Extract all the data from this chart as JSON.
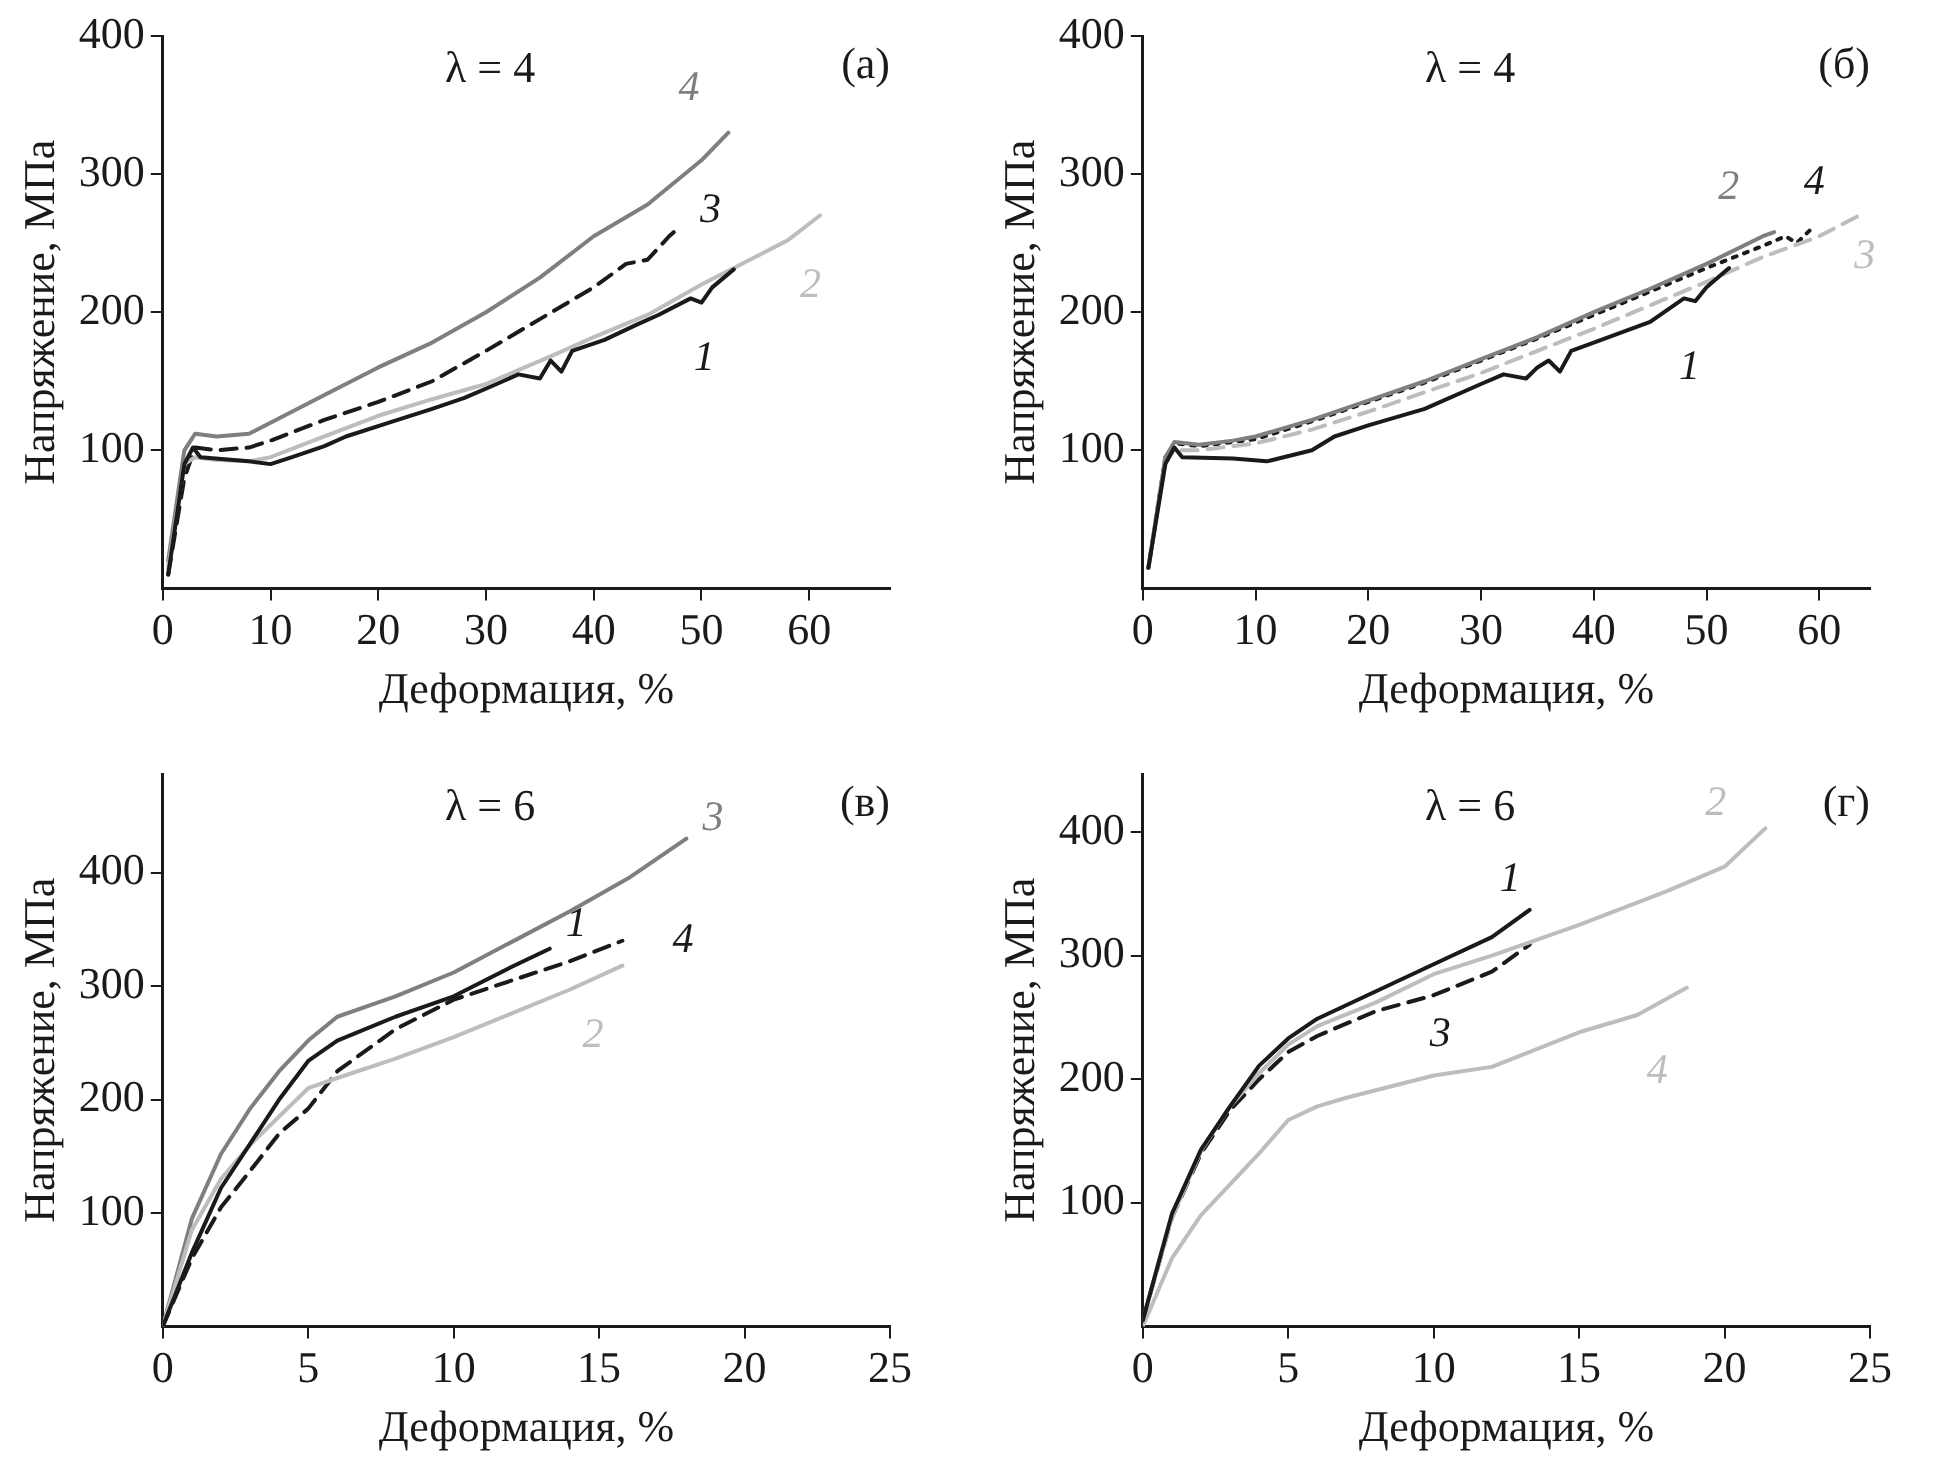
{
  "chart_data": [
    {
      "type": "line",
      "title": "λ = 4",
      "annotations": [
        "(а)"
      ],
      "xlabel": "Деформация, %",
      "ylabel": "Напряжение, МПа",
      "xlim": [
        0,
        67.5
      ],
      "ylim": [
        0,
        400
      ],
      "xticks": [
        0,
        10,
        20,
        30,
        40,
        50,
        60
      ],
      "yticks": [
        100,
        200,
        300,
        400
      ],
      "grid": false,
      "series": [
        {
          "name": "1",
          "color": "#1a1a1a",
          "line_style": "solid",
          "x": [
            0.5,
            2,
            2.8,
            3.5,
            8,
            10,
            12,
            15,
            17,
            21,
            25,
            28,
            31,
            33,
            35,
            36,
            37,
            38,
            41,
            44,
            46,
            49,
            50,
            51,
            53
          ],
          "values": [
            10,
            90,
            102,
            95,
            92,
            90,
            95,
            103,
            110,
            120,
            130,
            138,
            148,
            155,
            152,
            165,
            157,
            172,
            180,
            191,
            198,
            210,
            207,
            218,
            231
          ]
        },
        {
          "name": "2",
          "color": "#bdbdbd",
          "line_style": "solid",
          "x": [
            0.5,
            2,
            3,
            5,
            8,
            10,
            15,
            20,
            25,
            30,
            33,
            36,
            40,
            45,
            50,
            55,
            58,
            61
          ],
          "values": [
            15,
            90,
            95,
            93,
            92,
            95,
            110,
            125,
            137,
            148,
            158,
            168,
            182,
            198,
            220,
            240,
            252,
            270
          ]
        },
        {
          "name": "3",
          "color": "#1a1a1a",
          "line_style": "dashed",
          "x": [
            0.5,
            2,
            3,
            5,
            8,
            10,
            15,
            20,
            25,
            30,
            35,
            40,
            43,
            45,
            47,
            48
          ],
          "values": [
            10,
            80,
            102,
            100,
            102,
            107,
            122,
            135,
            150,
            172,
            195,
            218,
            235,
            238,
            255,
            262
          ]
        },
        {
          "name": "4",
          "color": "#7f7f7f",
          "line_style": "solid",
          "x": [
            0.5,
            2,
            3,
            5,
            8,
            10,
            15,
            20,
            25,
            30,
            35,
            40,
            45,
            50,
            52.5
          ],
          "values": [
            20,
            100,
            112,
            110,
            112,
            120,
            140,
            160,
            178,
            200,
            225,
            255,
            278,
            310,
            330
          ]
        }
      ]
    },
    {
      "type": "line",
      "title": "λ = 4",
      "annotations": [
        "(б)"
      ],
      "xlabel": "Деформация, %",
      "ylabel": "Напряжение, МПа",
      "xlim": [
        0,
        64.5
      ],
      "ylim": [
        0,
        400
      ],
      "xticks": [
        0,
        10,
        20,
        30,
        40,
        50,
        60
      ],
      "yticks": [
        100,
        200,
        300,
        400
      ],
      "grid": false,
      "series": [
        {
          "name": "1",
          "color": "#1a1a1a",
          "line_style": "solid",
          "x": [
            0.5,
            2,
            2.8,
            3.5,
            8,
            11,
            15,
            17,
            20,
            25,
            30,
            32,
            34,
            35,
            36,
            37,
            38,
            40,
            45,
            48,
            49,
            50,
            52
          ],
          "values": [
            15,
            90,
            102,
            95,
            94,
            92,
            100,
            110,
            118,
            130,
            148,
            155,
            152,
            160,
            165,
            157,
            172,
            178,
            193,
            210,
            208,
            218,
            232
          ]
        },
        {
          "name": "2",
          "color": "#7f7f7f",
          "line_style": "solid",
          "x": [
            0.5,
            2,
            2.8,
            5,
            8,
            10,
            15,
            20,
            25,
            30,
            35,
            40,
            45,
            50,
            55,
            56
          ],
          "values": [
            15,
            95,
            106,
            104,
            107,
            110,
            122,
            136,
            150,
            166,
            182,
            200,
            217,
            235,
            255,
            258
          ]
        },
        {
          "name": "3",
          "color": "#bdbdbd",
          "line_style": "dashed",
          "x": [
            0.5,
            2,
            3,
            5,
            10,
            15,
            20,
            25,
            30,
            35,
            40,
            45,
            50,
            55,
            60,
            64
          ],
          "values": [
            15,
            95,
            100,
            100,
            105,
            115,
            128,
            142,
            156,
            172,
            188,
            205,
            222,
            240,
            255,
            272
          ]
        },
        {
          "name": "4",
          "color": "#1a1a1a",
          "line_style": "dotted",
          "x": [
            0.5,
            2,
            3,
            5,
            10,
            15,
            20,
            25,
            30,
            35,
            40,
            45,
            50,
            55,
            57,
            58,
            59.5
          ],
          "values": [
            15,
            95,
            105,
            103,
            108,
            121,
            135,
            149,
            165,
            181,
            198,
            215,
            232,
            248,
            255,
            250,
            262
          ]
        }
      ]
    },
    {
      "type": "line",
      "title": "λ = 6",
      "annotations": [
        "(в)"
      ],
      "xlabel": "Деформация, %",
      "ylabel": "Напряжение, МПа",
      "xlim": [
        0,
        25
      ],
      "ylim": [
        0,
        487
      ],
      "xticks": [
        0,
        5,
        10,
        15,
        20,
        25
      ],
      "yticks": [
        100,
        200,
        300,
        400
      ],
      "grid": false,
      "series": [
        {
          "name": "1",
          "color": "#1a1a1a",
          "line_style": "solid",
          "x": [
            0,
            1,
            2,
            3,
            4,
            5,
            6,
            8,
            10,
            12,
            13.3
          ],
          "values": [
            0,
            65,
            122,
            161,
            200,
            234,
            252,
            273,
            291,
            317,
            333
          ]
        },
        {
          "name": "2",
          "color": "#bdbdbd",
          "line_style": "solid",
          "x": [
            0,
            1,
            2,
            3,
            4,
            5,
            6,
            8,
            10,
            12,
            14,
            15.8
          ],
          "values": [
            0,
            85,
            130,
            160,
            185,
            210,
            219,
            236,
            255,
            276,
            297,
            318
          ]
        },
        {
          "name": "3",
          "color": "#7f7f7f",
          "line_style": "solid",
          "x": [
            0,
            1,
            2,
            3,
            4,
            5,
            6,
            8,
            10,
            12,
            14,
            16,
            18
          ],
          "values": [
            0,
            95,
            152,
            192,
            225,
            252,
            273,
            291,
            312,
            339,
            366,
            395,
            430
          ]
        },
        {
          "name": "4",
          "color": "#1a1a1a",
          "line_style": "dashed",
          "x": [
            0,
            1,
            2,
            3,
            4,
            5,
            6,
            8,
            10,
            12,
            14,
            15.8
          ],
          "values": [
            0,
            60,
            105,
            137,
            170,
            192,
            225,
            262,
            288,
            305,
            322,
            340
          ]
        }
      ]
    },
    {
      "type": "line",
      "title": "λ = 6",
      "annotations": [
        "(г)"
      ],
      "xlabel": "Деформация, %",
      "ylabel": "Напряжение, МПа",
      "xlim": [
        0,
        25
      ],
      "ylim": [
        0,
        447
      ],
      "xticks": [
        0,
        5,
        10,
        15,
        20,
        25
      ],
      "yticks": [
        100,
        200,
        300,
        400
      ],
      "grid": false,
      "series": [
        {
          "name": "1",
          "color": "#1a1a1a",
          "line_style": "solid",
          "x": [
            0,
            1,
            2,
            3,
            4,
            5,
            6,
            8,
            10,
            12,
            13.3
          ],
          "values": [
            5,
            91,
            143,
            178,
            211,
            233,
            249,
            271,
            293,
            315,
            337
          ]
        },
        {
          "name": "2",
          "color": "#bdbdbd",
          "line_style": "solid",
          "x": [
            0,
            1,
            2,
            3,
            4,
            5,
            6,
            8,
            10,
            12,
            15,
            18,
            20,
            21.4
          ],
          "values": [
            5,
            88,
            142,
            178,
            205,
            228,
            243,
            262,
            285,
            300,
            325,
            352,
            372,
            403
          ]
        },
        {
          "name": "3",
          "color": "#1a1a1a",
          "line_style": "dashed",
          "x": [
            0,
            1,
            2,
            3,
            4,
            5,
            6,
            8,
            10,
            12,
            13.3
          ],
          "values": [
            5,
            88,
            140,
            175,
            200,
            222,
            235,
            255,
            268,
            287,
            309
          ]
        },
        {
          "name": "4",
          "color": "#bdbdbd",
          "line_style": "solid",
          "x": [
            0,
            1,
            2,
            3,
            4,
            5,
            6,
            7,
            10,
            12,
            15,
            17,
            18.7
          ],
          "values": [
            0,
            55,
            90,
            115,
            140,
            167,
            178,
            185,
            203,
            210,
            238,
            252,
            274
          ]
        }
      ]
    }
  ]
}
